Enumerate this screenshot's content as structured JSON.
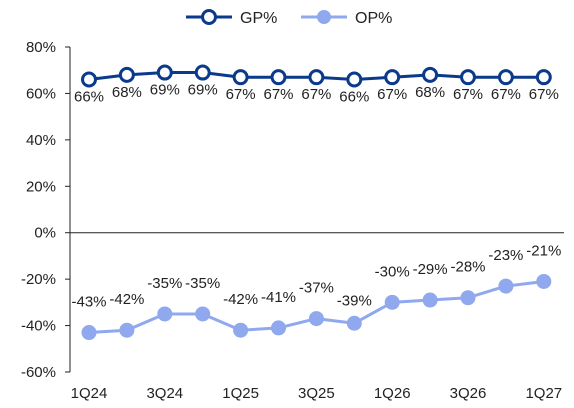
{
  "chart_data": {
    "type": "line",
    "title": "",
    "xlabel": "",
    "ylabel": "",
    "ylim": [
      -60,
      80
    ],
    "yticks": [
      80,
      60,
      40,
      20,
      0,
      -20,
      -40,
      -60
    ],
    "ytick_labels": [
      "80%",
      "60%",
      "40%",
      "20%",
      "0%",
      "-20%",
      "-40%",
      "-60%"
    ],
    "categories": [
      "1Q24",
      "2Q24",
      "3Q24",
      "4Q24",
      "1Q25",
      "2Q25",
      "3Q25",
      "4Q25",
      "1Q26",
      "2Q26",
      "3Q26",
      "4Q26",
      "1Q27"
    ],
    "xtick_labels": [
      "1Q24",
      "",
      "3Q24",
      "",
      "1Q25",
      "",
      "3Q25",
      "",
      "1Q26",
      "",
      "3Q26",
      "",
      "1Q27"
    ],
    "grid": false,
    "legend_position": "top-center",
    "series": [
      {
        "name": "GP%",
        "color": "#0b3a8c",
        "marker": "hollow-circle",
        "values": [
          66,
          68,
          69,
          69,
          67,
          67,
          67,
          66,
          67,
          68,
          67,
          67,
          67
        ],
        "labels": [
          "66%",
          "68%",
          "69%",
          "69%",
          "67%",
          "67%",
          "67%",
          "66%",
          "67%",
          "68%",
          "67%",
          "67%",
          "67%"
        ]
      },
      {
        "name": "OP%",
        "color": "#8fa8ee",
        "marker": "filled-circle",
        "values": [
          -43,
          -42,
          -35,
          -35,
          -42,
          -41,
          -37,
          -39,
          -30,
          -29,
          -28,
          -23,
          -21
        ],
        "labels": [
          "-43%",
          "-42%",
          "-35%",
          "-35%",
          "-42%",
          "-41%",
          "-37%",
          "-39%",
          "-30%",
          "-29%",
          "-28%",
          "-23%",
          "-21%"
        ]
      }
    ]
  }
}
